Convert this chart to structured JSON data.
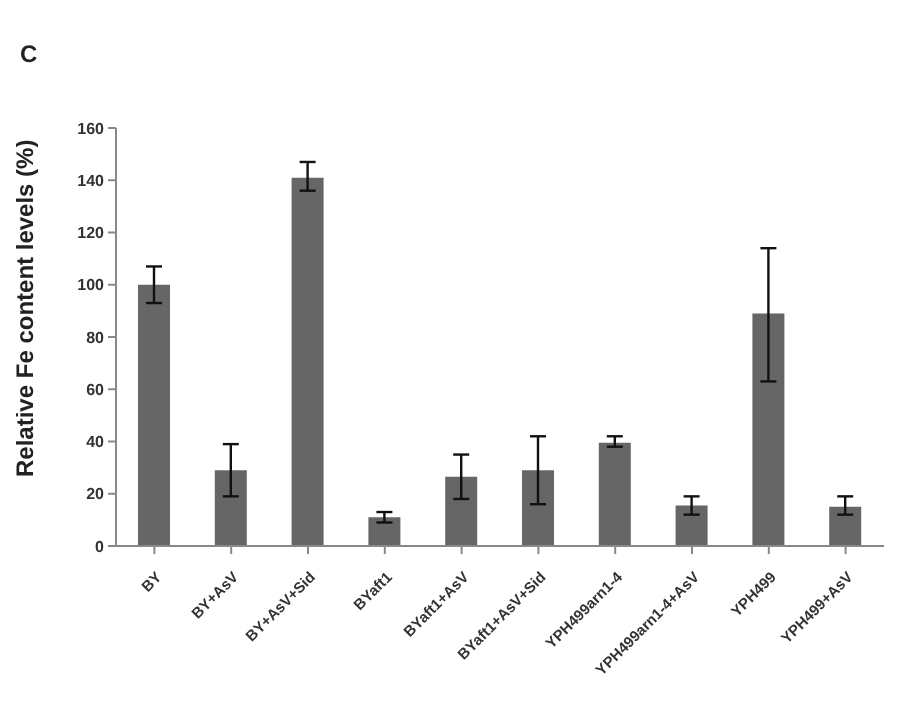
{
  "chart_data": {
    "type": "bar",
    "ylabel": "Relative Fe content levels (%)",
    "annotations": [
      "C"
    ],
    "categories": [
      "BY",
      "BY+AsV",
      "BY+AsV+Sid",
      "BYaft1",
      "BYaft1+AsV",
      "BYaft1+AsV+Sid",
      "YPH499arn1-4",
      "YPH499arn1-4+AsV",
      "YPH499",
      "YPH499+AsV"
    ],
    "values": [
      100,
      29,
      141,
      11,
      26.5,
      29,
      39.5,
      15.5,
      89,
      15
    ],
    "errors": [
      [
        93,
        107
      ],
      [
        19,
        39
      ],
      [
        136,
        147
      ],
      [
        9,
        13
      ],
      [
        18,
        35
      ],
      [
        16,
        42
      ],
      [
        38,
        42
      ],
      [
        12,
        19
      ],
      [
        63,
        114
      ],
      [
        12,
        19
      ]
    ],
    "color": "#666666",
    "ylim": [
      0,
      160
    ],
    "yticks": [
      0,
      20,
      40,
      60,
      80,
      100,
      120,
      140,
      160
    ],
    "grid": false,
    "legend": false
  }
}
